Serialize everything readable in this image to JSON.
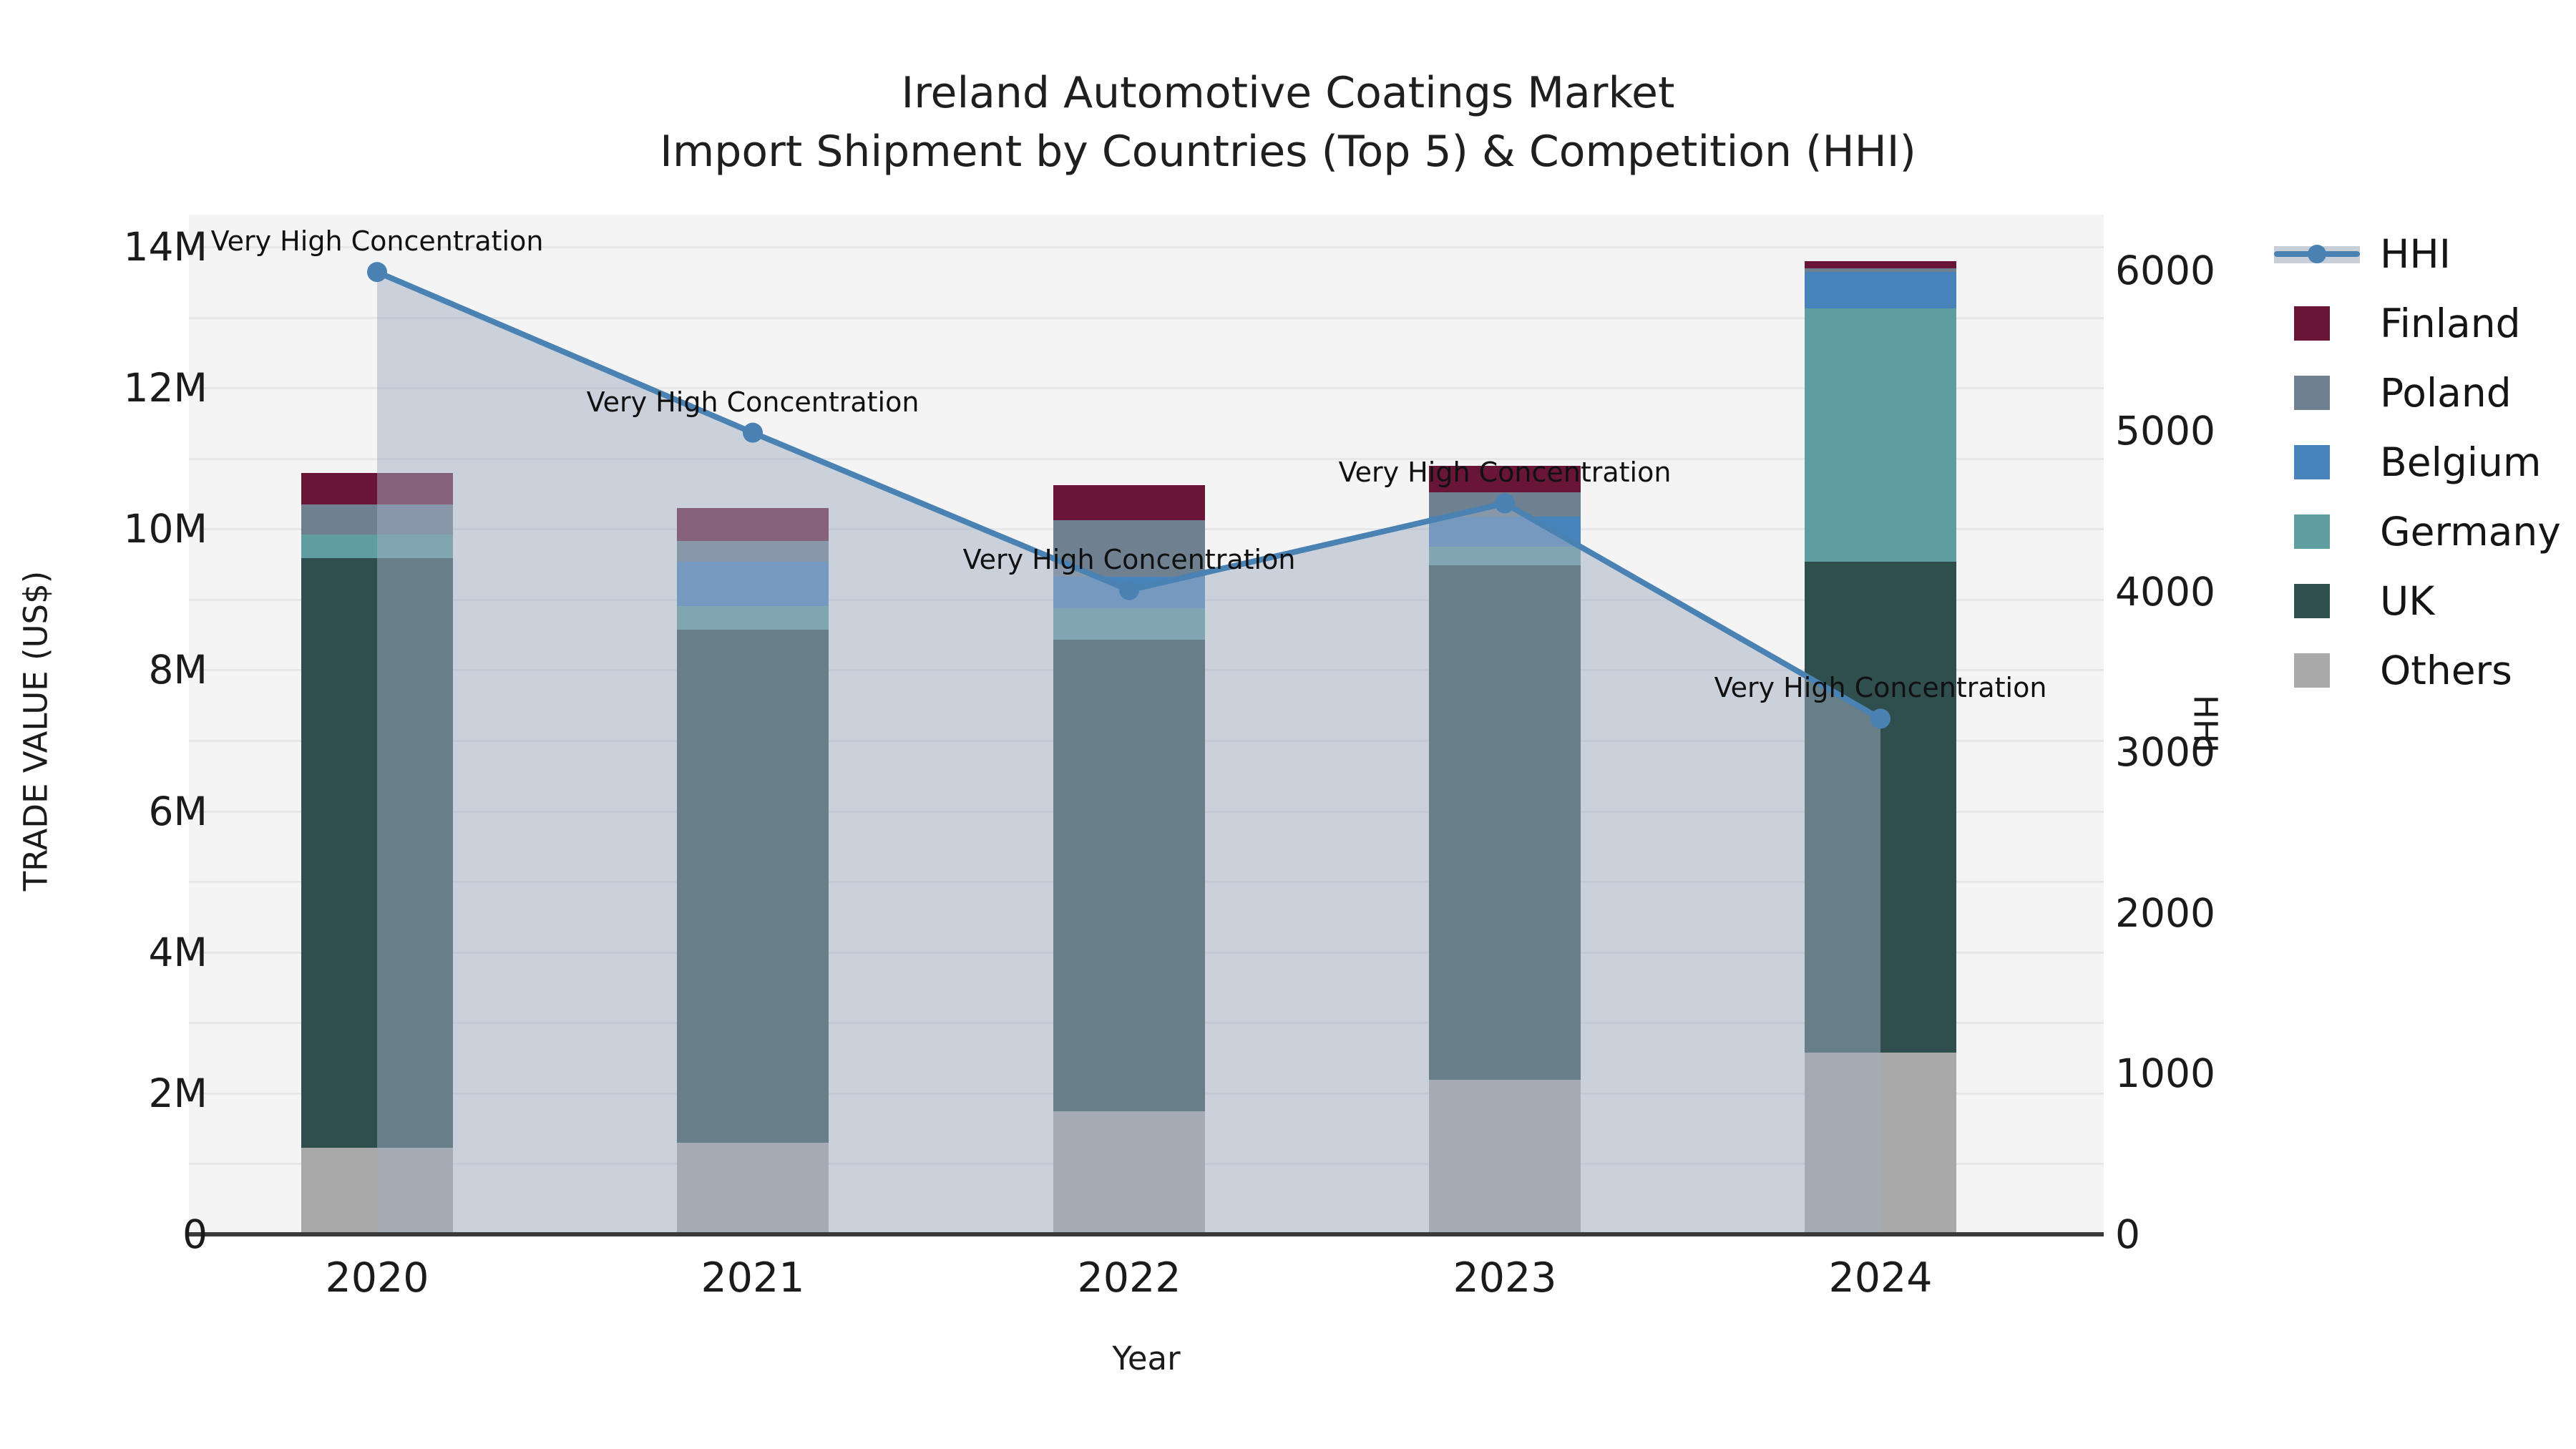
{
  "chart_data": {
    "type": "combo-stacked-bar-line",
    "title_line1": "Ireland Automotive Coatings Market",
    "title_line2": "Import Shipment by Countries (Top 5) & Competition (HHI)",
    "xlabel": "Year",
    "ylabel_left": "TRADE VALUE (US$)",
    "ylabel_right": "HHI",
    "categories": [
      "2020",
      "2021",
      "2022",
      "2023",
      "2024"
    ],
    "value_unit": "M US$",
    "stack_order": [
      "Others",
      "UK",
      "Germany",
      "Belgium",
      "Poland",
      "Finland"
    ],
    "series": [
      {
        "name": "Finland",
        "color": "#681537",
        "values": [
          0.44,
          0.47,
          0.49,
          0.38,
          0.1
        ]
      },
      {
        "name": "Poland",
        "color": "#6F8090",
        "values": [
          0.43,
          0.29,
          0.81,
          0.34,
          0.05
        ]
      },
      {
        "name": "Belgium",
        "color": "#4884BC",
        "values": [
          0.0,
          0.63,
          0.44,
          0.43,
          0.52
        ]
      },
      {
        "name": "Germany",
        "color": "#5F9EA0",
        "values": [
          0.33,
          0.34,
          0.45,
          0.26,
          3.59
        ]
      },
      {
        "name": "UK",
        "color": "#2F4F4F",
        "values": [
          8.36,
          7.27,
          6.68,
          7.3,
          6.96
        ]
      },
      {
        "name": "Others",
        "color": "#A9A9A9",
        "values": [
          1.23,
          1.3,
          1.75,
          2.19,
          2.58
        ]
      }
    ],
    "bar_totals": [
      10.79,
      10.3,
      10.62,
      10.9,
      13.8
    ],
    "line": {
      "name": "HHI",
      "color": "#4A82B4",
      "area_color": "rgba(162,174,194,0.5)",
      "values": [
        5990,
        4990,
        4010,
        4550,
        3210
      ]
    },
    "annotations": [
      "Very High Concentration",
      "Very High Concentration",
      "Very High Concentration",
      "Very High Concentration",
      "Very High Concentration"
    ],
    "left_axis": {
      "ticks": [
        "0",
        "2M",
        "4M",
        "6M",
        "8M",
        "10M",
        "12M",
        "14M"
      ],
      "tick_values": [
        0,
        2,
        4,
        6,
        8,
        10,
        12,
        14
      ],
      "max": 14.457
    },
    "right_axis": {
      "ticks": [
        "0",
        "1000",
        "2000",
        "3000",
        "4000",
        "5000",
        "6000"
      ],
      "tick_values": [
        0,
        1000,
        2000,
        3000,
        4000,
        5000,
        6000
      ],
      "max": 6347
    },
    "legend_order": [
      "HHI",
      "Finland",
      "Poland",
      "Belgium",
      "Germany",
      "UK",
      "Others"
    ],
    "grid": true,
    "legend_position": "right"
  }
}
